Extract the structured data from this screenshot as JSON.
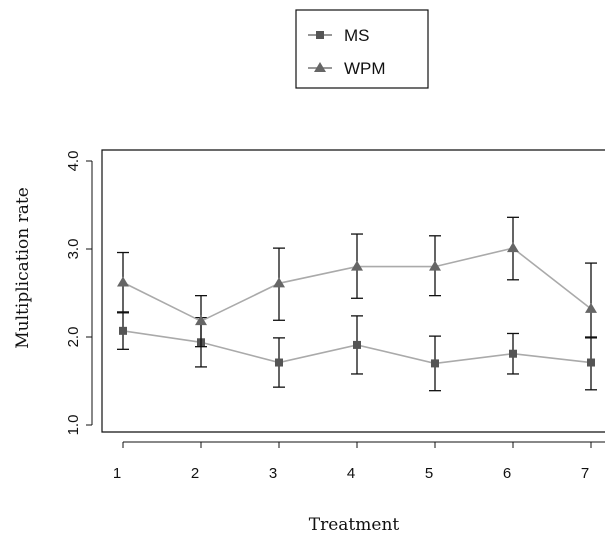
{
  "chart_data": {
    "type": "line",
    "xlabel": "Treatment",
    "ylabel": "Multiplication rate",
    "x": [
      1,
      2,
      3,
      4,
      5,
      6,
      7
    ],
    "xlim": [
      0.9,
      7.15
    ],
    "ylim": [
      0.93,
      4.0
    ],
    "yticks": [
      "1.0",
      "2.0",
      "3.0",
      "4.0"
    ],
    "xticks": [
      "1",
      "2",
      "3",
      "4",
      "5",
      "6",
      "7"
    ],
    "legend_position": "top-center",
    "grid": false,
    "series": [
      {
        "name": "MS",
        "marker": "square",
        "color": "#555555",
        "values": [
          2.07,
          1.94,
          1.71,
          1.91,
          1.7,
          1.81,
          1.71
        ],
        "err_low": [
          1.86,
          1.66,
          1.43,
          1.58,
          1.39,
          1.58,
          1.4
        ],
        "err_high": [
          2.28,
          2.22,
          1.99,
          2.24,
          2.01,
          2.04,
          2.0
        ]
      },
      {
        "name": "WPM",
        "marker": "triangle",
        "color": "#666666",
        "values": [
          2.62,
          2.18,
          2.61,
          2.8,
          2.8,
          3.01,
          2.32
        ],
        "err_low": [
          2.28,
          1.89,
          2.19,
          2.44,
          2.47,
          2.65,
          1.99
        ],
        "err_high": [
          2.96,
          2.47,
          3.01,
          3.17,
          3.15,
          3.36,
          2.84
        ]
      }
    ]
  }
}
